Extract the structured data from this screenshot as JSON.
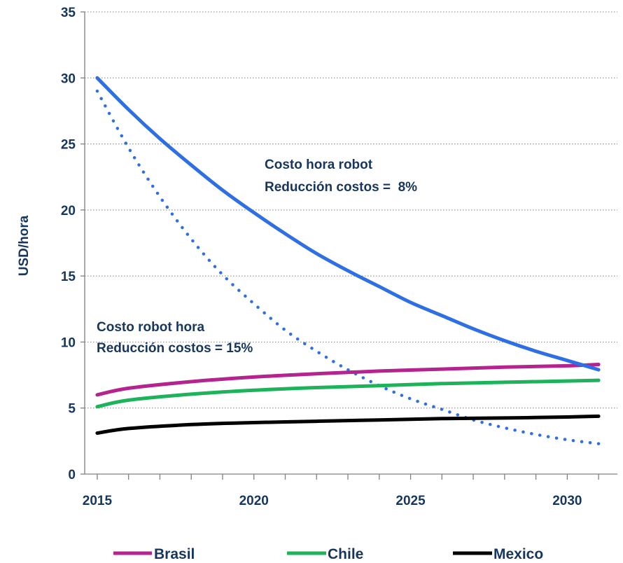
{
  "chart_data": {
    "type": "line",
    "ylabel": "USD/hora",
    "xlabel": "",
    "xlim": [
      2014.6,
      2031.6
    ],
    "ylim": [
      0,
      35
    ],
    "x_ticks": [
      2015,
      2020,
      2025,
      2030
    ],
    "y_ticks": [
      0,
      5,
      10,
      15,
      20,
      25,
      30,
      35
    ],
    "grid": "horizontal dotted",
    "legend_position": "bottom",
    "annotations": [
      {
        "line1": "Costo hora robot",
        "line2": "Reducción costos =  8%"
      },
      {
        "line1": "Costo robot hora",
        "line2": "Reducción costos = 15%"
      }
    ],
    "series": [
      {
        "name": "Brasil",
        "color": "#b5238f",
        "style": "solid",
        "x": [
          2015,
          2016,
          2018,
          2020,
          2022,
          2024,
          2026,
          2028,
          2030,
          2031
        ],
        "values": [
          6.0,
          6.5,
          7.0,
          7.35,
          7.6,
          7.8,
          7.95,
          8.1,
          8.2,
          8.3
        ]
      },
      {
        "name": "Chile",
        "color": "#1db35a",
        "style": "solid",
        "x": [
          2015,
          2016,
          2018,
          2020,
          2022,
          2024,
          2026,
          2028,
          2030,
          2031
        ],
        "values": [
          5.1,
          5.6,
          6.05,
          6.35,
          6.55,
          6.7,
          6.85,
          6.95,
          7.05,
          7.1
        ]
      },
      {
        "name": "Mexico",
        "color": "#000000",
        "style": "solid",
        "x": [
          2015,
          2016,
          2018,
          2020,
          2022,
          2024,
          2026,
          2028,
          2030,
          2031
        ],
        "values": [
          3.1,
          3.45,
          3.75,
          3.9,
          4.0,
          4.1,
          4.2,
          4.25,
          4.32,
          4.38
        ]
      },
      {
        "name": "",
        "color": "#2f6fe6",
        "style": "solid",
        "x": [
          2015,
          2016,
          2017,
          2018,
          2019,
          2020,
          2021,
          2022,
          2023,
          2024,
          2025,
          2026,
          2027,
          2028,
          2029,
          2030,
          2031
        ],
        "values": [
          30.0,
          27.6,
          25.4,
          23.4,
          21.5,
          19.8,
          18.2,
          16.7,
          15.4,
          14.2,
          13.0,
          12.0,
          11.0,
          10.1,
          9.3,
          8.6,
          7.9
        ]
      },
      {
        "name": "",
        "color": "#2f6fe6",
        "style": "dotted",
        "x": [
          2015,
          2016,
          2017,
          2018,
          2019,
          2020,
          2021,
          2022,
          2023,
          2024,
          2025,
          2026,
          2027,
          2028,
          2029,
          2030,
          2031
        ],
        "values": [
          29.0,
          24.7,
          21.0,
          17.8,
          15.1,
          12.9,
          10.9,
          9.3,
          7.9,
          6.7,
          5.7,
          4.9,
          4.1,
          3.5,
          3.0,
          2.6,
          2.3
        ]
      }
    ]
  }
}
